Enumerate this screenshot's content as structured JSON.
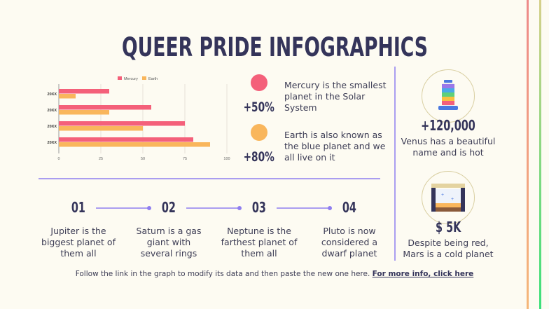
{
  "title": "QUEER PRIDE INFOGRAPHICS",
  "chart_data": {
    "type": "bar",
    "orientation": "horizontal",
    "categories": [
      "20XX",
      "20XX",
      "20XX",
      "20XX"
    ],
    "series": [
      {
        "name": "Mercury",
        "values": [
          30,
          55,
          75,
          80
        ],
        "color": "#f4607a"
      },
      {
        "name": "Earth",
        "values": [
          10,
          30,
          50,
          90
        ],
        "color": "#f9b65c"
      }
    ],
    "xticks": [
      0,
      25,
      50,
      75,
      100
    ],
    "xlim": [
      0,
      100
    ],
    "grid": true,
    "legend": "top"
  },
  "stats": [
    {
      "value": "+50%",
      "text": "Mercury is the smallest planet in the Solar System",
      "color": "#f4607a"
    },
    {
      "value": "+80%",
      "text": "Earth is also known as the blue planet and we all live on it",
      "color": "#f9b65c"
    }
  ],
  "steps": [
    {
      "num": "01",
      "text": "Jupiter is the biggest planet of them all"
    },
    {
      "num": "02",
      "text": "Saturn is a gas giant with several rings"
    },
    {
      "num": "03",
      "text": "Neptune is the farthest planet of them all"
    },
    {
      "num": "04",
      "text": "Pluto is now considered a dwarf planet"
    }
  ],
  "side": [
    {
      "icon": "rainbow-drink-icon",
      "value": "+120,000",
      "text": "Venus has a beautiful name and is hot"
    },
    {
      "icon": "stage-icon",
      "value": "$ 5K",
      "text": "Despite being red, Mars is a cold planet"
    }
  ],
  "footer": {
    "text": "Follow the link in the graph to modify its data and then paste the new one here.",
    "link": "For more info, click here"
  },
  "colors": {
    "accent": "#8f7ef0",
    "navy": "#34345a"
  }
}
